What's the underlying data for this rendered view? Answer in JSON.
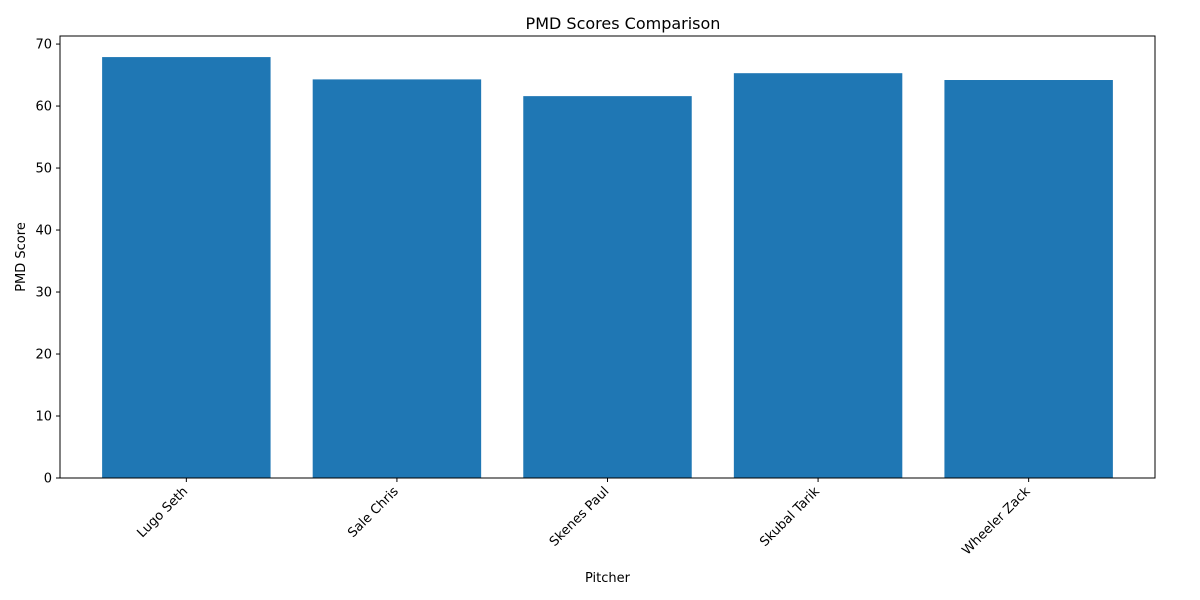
{
  "chart_data": {
    "type": "bar",
    "title": "PMD Scores Comparison",
    "xlabel": "Pitcher",
    "ylabel": "PMD Score",
    "categories": [
      "Lugo Seth",
      "Sale Chris",
      "Skenes Paul",
      "Skubal Tarik",
      "Wheeler Zack"
    ],
    "values": [
      67.9,
      64.3,
      61.6,
      65.3,
      64.2
    ],
    "ylim": [
      0,
      71.3
    ],
    "yticks": [
      0,
      10,
      20,
      30,
      40,
      50,
      60,
      70
    ],
    "bar_color": "#1f77b4",
    "grid": false,
    "legend": "none"
  }
}
